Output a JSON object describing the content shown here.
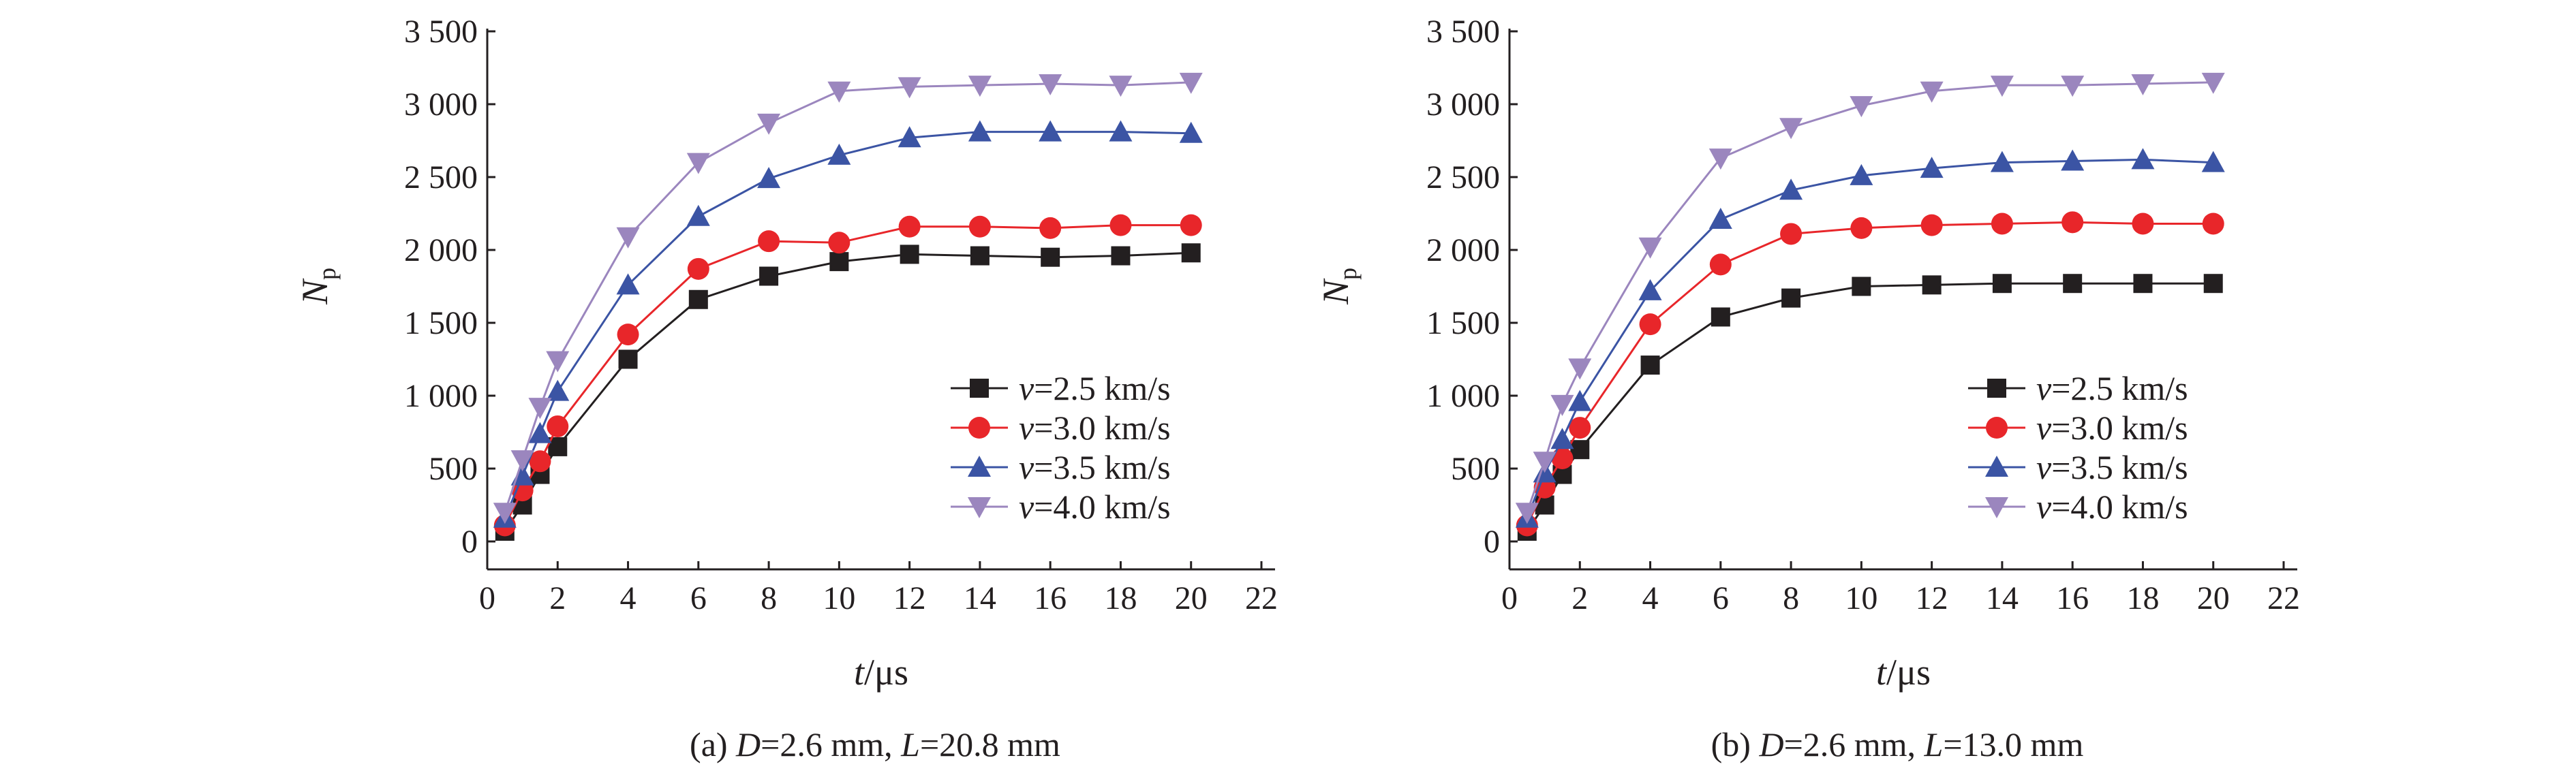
{
  "chart_data": [
    {
      "type": "line",
      "caption": {
        "prefix": "(a) ",
        "d_var": "D",
        "d_val": "=2.6 mm, ",
        "l_var": "L",
        "l_val": "=20.8 mm"
      },
      "ylabel": {
        "main": "N",
        "sub": "p"
      },
      "xlabel": {
        "var": "t",
        "unit": "/μs"
      },
      "xlim": [
        0,
        22
      ],
      "ylim": [
        0,
        3500
      ],
      "xticks": [
        0,
        2,
        4,
        6,
        8,
        10,
        12,
        14,
        16,
        18,
        20,
        22
      ],
      "yticks": [
        0,
        500,
        1000,
        1500,
        2000,
        2500,
        3000,
        3500
      ],
      "ytick_labels": [
        "0",
        "500",
        "1 000",
        "1 500",
        "2 000",
        "2 500",
        "3 000",
        "3 500"
      ],
      "legend_position": "right-middle",
      "x": [
        0.5,
        1,
        1.5,
        2,
        4,
        6,
        8,
        10,
        12,
        14,
        16,
        18,
        20
      ],
      "series": [
        {
          "name": "=2.5 km/s",
          "var": "v",
          "color": "#231f20",
          "marker": "square",
          "values": [
            70,
            250,
            460,
            650,
            1250,
            1660,
            1820,
            1920,
            1970,
            1960,
            1950,
            1960,
            1980
          ]
        },
        {
          "name": "=3.0 km/s",
          "var": "v",
          "color": "#e8262a",
          "marker": "circle",
          "values": [
            110,
            350,
            550,
            790,
            1420,
            1870,
            2060,
            2050,
            2160,
            2160,
            2150,
            2170,
            2170
          ]
        },
        {
          "name": "=3.5 km/s",
          "var": "v",
          "color": "#3b54a4",
          "marker": "triangle-up",
          "values": [
            160,
            450,
            740,
            1030,
            1760,
            2230,
            2490,
            2650,
            2770,
            2810,
            2810,
            2810,
            2800
          ]
        },
        {
          "name": "=4.0 km/s",
          "var": "v",
          "color": "#9b86be",
          "marker": "triangle-down",
          "values": [
            200,
            560,
            920,
            1240,
            2090,
            2600,
            2870,
            3090,
            3120,
            3130,
            3140,
            3130,
            3150
          ]
        }
      ]
    },
    {
      "type": "line",
      "caption": {
        "prefix": "(b) ",
        "d_var": "D",
        "d_val": "=2.6 mm, ",
        "l_var": "L",
        "l_val": "=13.0 mm"
      },
      "ylabel": {
        "main": "N",
        "sub": "p"
      },
      "xlabel": {
        "var": "t",
        "unit": "/μs"
      },
      "xlim": [
        0,
        22
      ],
      "ylim": [
        0,
        3500
      ],
      "xticks": [
        0,
        2,
        4,
        6,
        8,
        10,
        12,
        14,
        16,
        18,
        20,
        22
      ],
      "yticks": [
        0,
        500,
        1000,
        1500,
        2000,
        2500,
        3000,
        3500
      ],
      "ytick_labels": [
        "0",
        "500",
        "1 000",
        "1 500",
        "2 000",
        "2 500",
        "3 000",
        "3 500"
      ],
      "legend_position": "right-middle",
      "x": [
        0.5,
        1,
        1.5,
        2,
        4,
        6,
        8,
        10,
        12,
        14,
        16,
        18,
        20
      ],
      "series": [
        {
          "name": "=2.5 km/s",
          "var": "v",
          "color": "#231f20",
          "marker": "square",
          "values": [
            70,
            250,
            460,
            630,
            1210,
            1540,
            1670,
            1750,
            1760,
            1770,
            1770,
            1770,
            1770
          ]
        },
        {
          "name": "=3.0 km/s",
          "var": "v",
          "color": "#e8262a",
          "marker": "circle",
          "values": [
            110,
            370,
            570,
            780,
            1490,
            1900,
            2110,
            2150,
            2170,
            2180,
            2190,
            2180,
            2180
          ]
        },
        {
          "name": "=3.5 km/s",
          "var": "v",
          "color": "#3b54a4",
          "marker": "triangle-up",
          "values": [
            160,
            470,
            700,
            960,
            1720,
            2210,
            2410,
            2510,
            2560,
            2600,
            2610,
            2620,
            2600
          ]
        },
        {
          "name": "=4.0 km/s",
          "var": "v",
          "color": "#9b86be",
          "marker": "triangle-down",
          "values": [
            200,
            550,
            940,
            1190,
            2020,
            2630,
            2840,
            2990,
            3090,
            3130,
            3130,
            3140,
            3150
          ]
        }
      ]
    }
  ]
}
